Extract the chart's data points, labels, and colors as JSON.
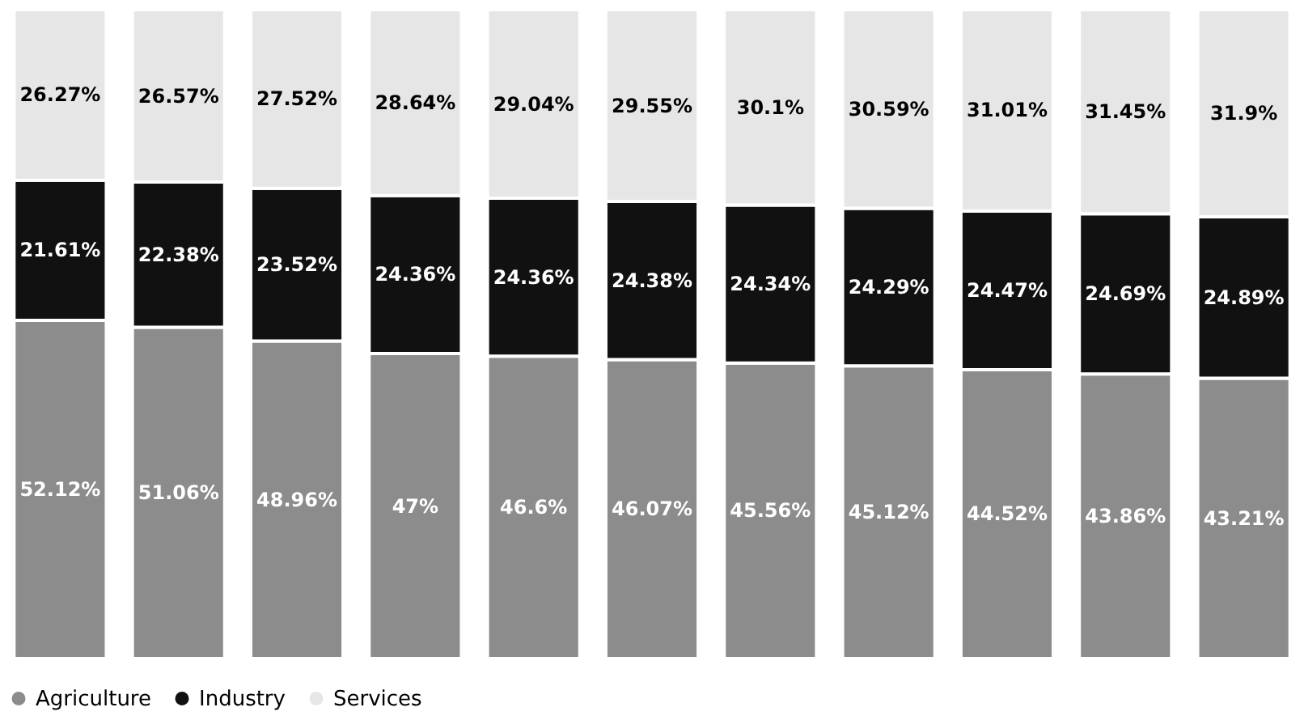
{
  "chart_data": {
    "type": "bar",
    "stacked": true,
    "categories": [
      null,
      null,
      null,
      null,
      null,
      null,
      null,
      null,
      null,
      null,
      null
    ],
    "series": [
      {
        "name": "Agriculture",
        "color": "#8c8c8c",
        "values": [
          52.12,
          51.06,
          48.96,
          47,
          46.6,
          46.07,
          45.56,
          45.12,
          44.52,
          43.86,
          43.21
        ],
        "value_labels": [
          "52.12%",
          "51.06%",
          "48.96%",
          "47%",
          "46.6%",
          "46.07%",
          "45.56%",
          "45.12%",
          "44.52%",
          "43.86%",
          "43.21%"
        ]
      },
      {
        "name": "Industry",
        "color": "#111111",
        "values": [
          21.61,
          22.38,
          23.52,
          24.36,
          24.36,
          24.38,
          24.34,
          24.29,
          24.47,
          24.69,
          24.89
        ],
        "value_labels": [
          "21.61%",
          "22.38%",
          "23.52%",
          "24.36%",
          "24.36%",
          "24.38%",
          "24.34%",
          "24.29%",
          "24.47%",
          "24.69%",
          "24.89%"
        ]
      },
      {
        "name": "Services",
        "color": "#e6e6e6",
        "values": [
          26.27,
          26.57,
          27.52,
          28.64,
          29.04,
          29.55,
          30.1,
          30.59,
          31.01,
          31.45,
          31.9
        ],
        "value_labels": [
          "26.27%",
          "26.57%",
          "27.52%",
          "28.64%",
          "29.04%",
          "29.55%",
          "30.1%",
          "30.59%",
          "31.01%",
          "31.45%",
          "31.9%"
        ]
      }
    ],
    "legend": "bottom",
    "tick_labels": false
  }
}
